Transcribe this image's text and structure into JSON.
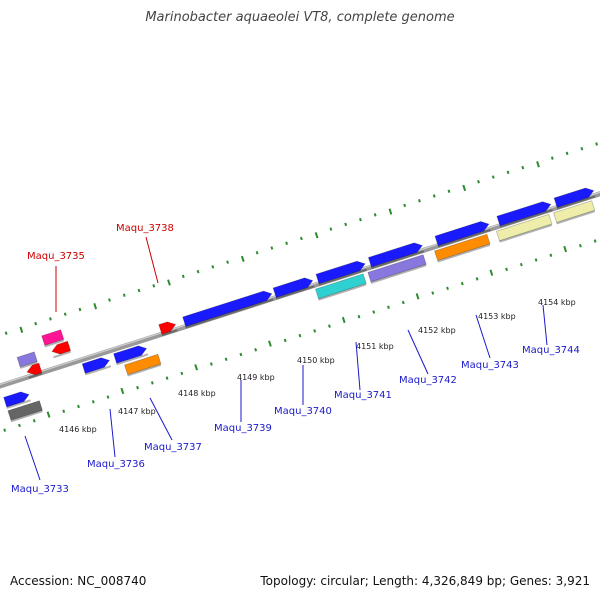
{
  "title": "Marinobacter aquaeolei VT8, complete genome",
  "footer": {
    "accession": "Accession: NC_008740",
    "summary": "Topology: circular; Length: 4,326,849 bp; Genes: 3,921"
  },
  "colors": {
    "forward_gene": "#1a1aff",
    "selected_label": "#cc0000",
    "gene_label": "#1a1acc",
    "tick": "#2e8b2e",
    "backbone": "#888888"
  },
  "diagram": {
    "kbp_ticks": [
      "4146 kbp",
      "4147 kbp",
      "4148 kbp",
      "4149 kbp",
      "4150 kbp",
      "4151 kbp",
      "4152 kbp",
      "4153 kbp",
      "4154 kbp"
    ],
    "gene_labels": [
      {
        "name": "Maqu_3733",
        "kind": "normal"
      },
      {
        "name": "Maqu_3735",
        "kind": "highlight"
      },
      {
        "name": "Maqu_3736",
        "kind": "normal"
      },
      {
        "name": "Maqu_3737",
        "kind": "normal"
      },
      {
        "name": "Maqu_3738",
        "kind": "highlight"
      },
      {
        "name": "Maqu_3739",
        "kind": "normal"
      },
      {
        "name": "Maqu_3740",
        "kind": "normal"
      },
      {
        "name": "Maqu_3741",
        "kind": "normal"
      },
      {
        "name": "Maqu_3742",
        "kind": "normal"
      },
      {
        "name": "Maqu_3743",
        "kind": "normal"
      },
      {
        "name": "Maqu_3744",
        "kind": "normal"
      }
    ]
  }
}
